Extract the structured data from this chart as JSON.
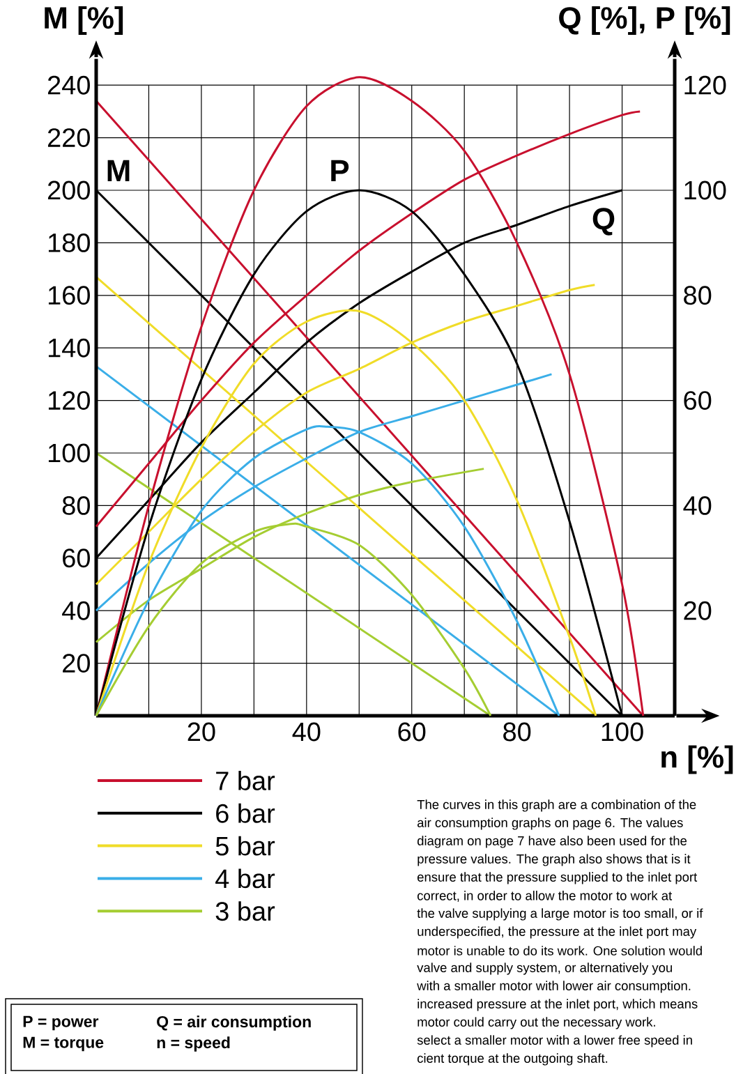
{
  "chart_data": {
    "type": "line",
    "xlabel": "n [%]",
    "ylabel": "M [%]",
    "y2label": "Q [%], P [%]",
    "xlim": [
      0,
      110
    ],
    "ylim": [
      0,
      250
    ],
    "y2lim": [
      0,
      125
    ],
    "xticks": [
      {
        "value": 10,
        "label": null
      },
      20,
      {
        "value": 30,
        "label": null
      },
      40,
      {
        "value": 50,
        "label": null
      },
      60,
      {
        "value": 70,
        "label": null
      },
      80,
      {
        "value": 90,
        "label": null
      },
      100
    ],
    "yticks": [
      20,
      40,
      60,
      80,
      100,
      120,
      140,
      160,
      180,
      200,
      220,
      240
    ],
    "y2ticks": [
      20,
      40,
      60,
      80,
      100,
      120
    ],
    "grid": true,
    "legend": "bottom",
    "marker": "none",
    "line_style": "solid",
    "series": [
      {
        "name": "7 bar",
        "color": "#c8102e",
        "axis": "y",
        "x": [
          0,
          104
        ],
        "values": [
          234,
          0
        ]
      },
      {
        "name": "6 bar",
        "color": "#000000",
        "axis": "y",
        "x": [
          0,
          100
        ],
        "values": [
          200,
          0
        ]
      },
      {
        "name": "5 bar",
        "color": "#f0dc28",
        "axis": "y",
        "x": [
          0,
          95
        ],
        "values": [
          167,
          0
        ]
      },
      {
        "name": "4 bar",
        "color": "#3aaee8",
        "axis": "y",
        "x": [
          0,
          88
        ],
        "values": [
          133,
          0
        ]
      },
      {
        "name": "3 bar",
        "color": "#a5cd32",
        "axis": "y",
        "x": [
          0,
          75
        ],
        "values": [
          100,
          0
        ]
      },
      {
        "color": "#c8102e",
        "axis": "y2",
        "x": [
          0,
          10,
          20,
          30,
          40,
          50,
          60,
          70,
          80,
          90,
          100,
          103.4
        ],
        "values": [
          36,
          48,
          60,
          71,
          80,
          88.5,
          95.6,
          102,
          106.6,
          110.7,
          114.3,
          115
        ]
      },
      {
        "color": "#000000",
        "axis": "y2",
        "x": [
          0,
          10,
          20,
          30,
          40,
          50,
          60,
          70,
          80,
          90,
          100
        ],
        "values": [
          30,
          41,
          52,
          61.5,
          71,
          78.5,
          84.5,
          90,
          93.4,
          97,
          100
        ]
      },
      {
        "color": "#f0dc28",
        "axis": "y2",
        "x": [
          0,
          10,
          20,
          30,
          40,
          50,
          60,
          70,
          80,
          90,
          94.8
        ],
        "values": [
          25,
          35,
          45,
          54,
          61.5,
          66,
          71,
          75,
          78,
          81,
          82
        ]
      },
      {
        "color": "#3aaee8",
        "axis": "y2",
        "x": [
          0,
          10,
          20,
          30,
          40,
          50,
          60,
          70,
          80,
          86.6
        ],
        "values": [
          20,
          29,
          37,
          43.5,
          49,
          54,
          57,
          60,
          63,
          65
        ]
      },
      {
        "color": "#a5cd32",
        "axis": "y2",
        "x": [
          0,
          10,
          20,
          30,
          40,
          50,
          60,
          73.7
        ],
        "values": [
          14,
          22,
          28,
          34,
          38.5,
          42,
          44.5,
          47
        ]
      },
      {
        "color": "#c8102e",
        "axis": "y2",
        "x": [
          0,
          10,
          20,
          30,
          40,
          50,
          60,
          70,
          80,
          90,
          100,
          104
        ],
        "values": [
          0,
          40,
          74,
          100,
          116,
          121.5,
          117,
          107.5,
          90,
          65,
          25,
          0
        ]
      },
      {
        "color": "#000000",
        "axis": "y2",
        "x": [
          0,
          10,
          20,
          30,
          40,
          50,
          60,
          70,
          80,
          90,
          100
        ],
        "values": [
          0,
          36,
          64,
          84,
          96,
          100,
          96,
          84,
          67,
          37,
          0
        ]
      },
      {
        "color": "#f0dc28",
        "axis": "y2",
        "x": [
          0,
          10,
          20,
          30,
          40,
          50,
          60,
          70,
          80,
          90,
          95
        ],
        "values": [
          0,
          29,
          51,
          67,
          75,
          77,
          71,
          60,
          41,
          15,
          0
        ]
      },
      {
        "color": "#3aaee8",
        "axis": "y2",
        "x": [
          0,
          10,
          20,
          30,
          40,
          44,
          50,
          60,
          70,
          80,
          88
        ],
        "values": [
          0,
          22,
          39,
          49,
          54.5,
          55,
          54,
          48,
          36,
          18,
          0
        ]
      },
      {
        "color": "#a5cd32",
        "axis": "y2",
        "x": [
          0,
          10,
          20,
          30,
          37,
          40,
          50,
          60,
          70,
          75
        ],
        "values": [
          0,
          17,
          29,
          35,
          36.5,
          36,
          32.5,
          23,
          9,
          0
        ]
      }
    ],
    "annotations": [
      "M",
      "P",
      "Q",
      "P = power",
      "M = torque",
      "Q = air consumption",
      "n = speed",
      "The curves in this graph are a combination of the",
      "air consumption graphs on page 6. The values",
      "diagram on page 7 have also been used for the",
      "pressure values. The graph also shows that is it",
      "ensure that the pressure supplied to the inlet port",
      "correct, in order to allow the motor to work at",
      "the valve supplying a large motor is too small, or if",
      "underspecified, the pressure at the inlet port may",
      "motor is unable to do its work. One solution would",
      "valve and supply system, or alternatively you",
      "with a smaller motor with lower air consumption.",
      "increased pressure at the inlet port, which means",
      "motor could carry out the necessary work.",
      "select a smaller motor with a lower free speed in",
      "cient torque at the outgoing shaft."
    ]
  }
}
